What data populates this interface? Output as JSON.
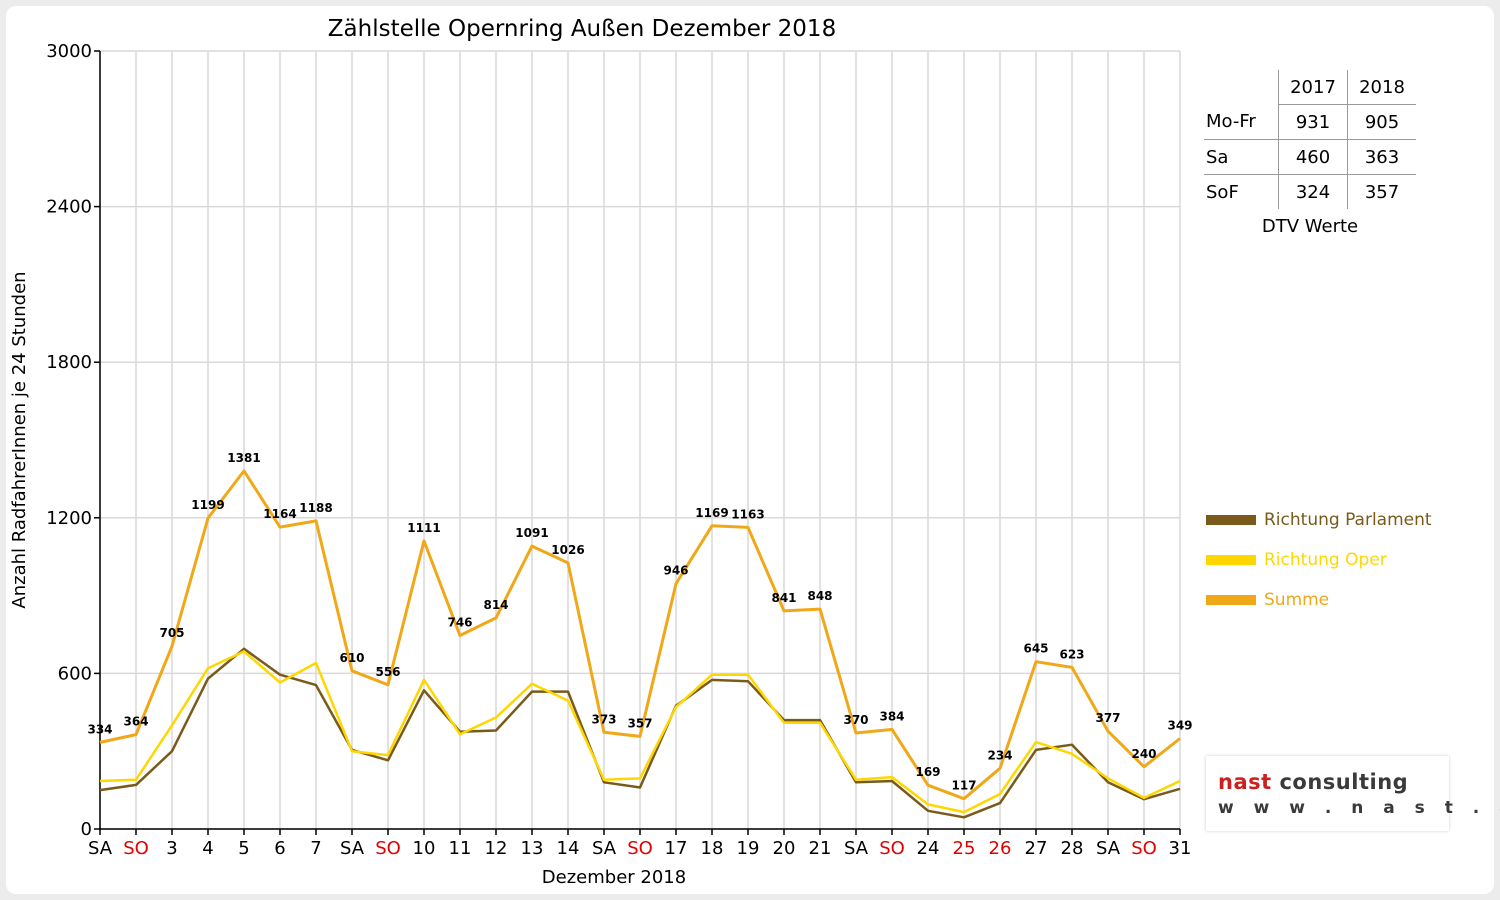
{
  "chart_data": {
    "type": "line",
    "title": "Zählstelle Opernring Außen Dezember 2018",
    "xlabel": "Dezember 2018",
    "ylabel": "Anzahl RadfahrerInnen je 24 Stunden",
    "ylim": [
      0,
      3000
    ],
    "yticks": [
      "0",
      "600",
      "1200",
      "1800",
      "2400",
      "3000"
    ],
    "grid": true,
    "legend_position": "right",
    "categories": [
      "SA",
      "SO",
      "3",
      "4",
      "5",
      "6",
      "7",
      "SA",
      "SO",
      "10",
      "11",
      "12",
      "13",
      "14",
      "SA",
      "SO",
      "17",
      "18",
      "19",
      "20",
      "21",
      "SA",
      "SO",
      "24",
      "25",
      "26",
      "27",
      "28",
      "SA",
      "SO",
      "31"
    ],
    "red_categories": [
      1,
      8,
      15,
      22,
      24,
      25,
      29
    ],
    "series": [
      {
        "name": "Richtung Parlament",
        "color": "#7a5a1a",
        "values": [
          150,
          170,
          300,
          580,
          695,
          595,
          555,
          305,
          265,
          535,
          375,
          380,
          530,
          530,
          180,
          160,
          475,
          575,
          570,
          420,
          420,
          180,
          185,
          70,
          45,
          100,
          305,
          325,
          180,
          115,
          155
        ]
      },
      {
        "name": "Richtung Oper",
        "color": "#ffd700",
        "values": [
          185,
          190,
          400,
          620,
          685,
          565,
          640,
          300,
          285,
          575,
          365,
          430,
          560,
          495,
          190,
          195,
          470,
          595,
          595,
          410,
          410,
          190,
          200,
          95,
          65,
          135,
          335,
          290,
          195,
          120,
          185
        ]
      },
      {
        "name": "Summe",
        "color": "#f0a818",
        "values": [
          334,
          364,
          705,
          1199,
          1381,
          1164,
          1188,
          610,
          556,
          1111,
          746,
          814,
          1091,
          1026,
          373,
          357,
          946,
          1169,
          1163,
          841,
          848,
          370,
          384,
          169,
          117,
          234,
          645,
          623,
          377,
          240,
          349
        ]
      }
    ],
    "data_labels": [
      "334",
      "364",
      "705",
      "1199",
      "1381",
      "1164",
      "1188",
      "610",
      "556",
      "1111",
      "746",
      "814",
      "1091",
      "1026",
      "373",
      "357",
      "946",
      "1169",
      "1163",
      "841",
      "848",
      "370",
      "384",
      "169",
      "117",
      "234",
      "645",
      "623",
      "377",
      "240",
      "349"
    ]
  },
  "dtv_table": {
    "headers": [
      "2017",
      "2018"
    ],
    "rows": [
      {
        "label": "Mo-Fr",
        "v2017": "931",
        "v2018": "905"
      },
      {
        "label": "Sa",
        "v2017": "460",
        "v2018": "363"
      },
      {
        "label": "SoF",
        "v2017": "324",
        "v2018": "357"
      }
    ],
    "caption": "DTV Werte"
  },
  "logo": {
    "brand_a": "nast",
    "brand_b": " consulting",
    "web": "w w w . n a s t . a t"
  }
}
